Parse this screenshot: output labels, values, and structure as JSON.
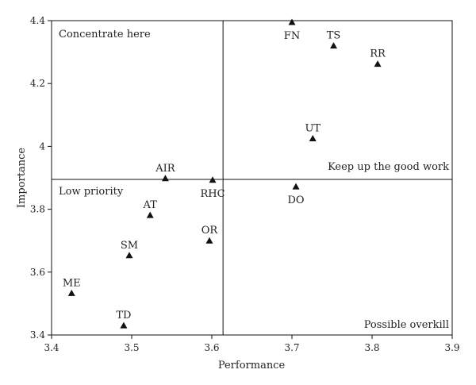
{
  "chart_data": {
    "type": "scatter",
    "title": "",
    "xlabel": "Performance",
    "ylabel": "Importance",
    "xlim": [
      3.4,
      3.9
    ],
    "ylim": [
      3.4,
      4.4
    ],
    "xticks": [
      3.4,
      3.5,
      3.6,
      3.7,
      3.8,
      3.9
    ],
    "yticks": [
      3.4,
      3.6,
      3.8,
      4.0,
      4.2,
      4.4
    ],
    "xtick_labels": [
      "3.4",
      "3.5",
      "3.6",
      "3.7",
      "3.8",
      "3.9"
    ],
    "ytick_labels": [
      "3.4",
      "3.6",
      "3.8",
      "4",
      "4.2",
      "4.4"
    ],
    "grid": false,
    "marker": "triangle",
    "marker_color": "#111111",
    "divider_x": 3.614,
    "divider_y": 3.895,
    "quadrants": {
      "top_left": "Concentrate here",
      "top_right": "Keep up the good work",
      "bottom_left": "Low priority",
      "bottom_right": "Possible overkill"
    },
    "points": [
      {
        "label": "FN",
        "x": 3.7,
        "y": 4.395,
        "label_pos": "below"
      },
      {
        "label": "TS",
        "x": 3.752,
        "y": 4.32,
        "label_pos": "above"
      },
      {
        "label": "RR",
        "x": 3.807,
        "y": 4.262,
        "label_pos": "above"
      },
      {
        "label": "UT",
        "x": 3.726,
        "y": 4.025,
        "label_pos": "above"
      },
      {
        "label": "DO",
        "x": 3.705,
        "y": 3.872,
        "label_pos": "below"
      },
      {
        "label": "AIR",
        "x": 3.542,
        "y": 3.898,
        "label_pos": "above"
      },
      {
        "label": "RHC",
        "x": 3.601,
        "y": 3.893,
        "label_pos": "below"
      },
      {
        "label": "AT",
        "x": 3.523,
        "y": 3.781,
        "label_pos": "above"
      },
      {
        "label": "OR",
        "x": 3.597,
        "y": 3.7,
        "label_pos": "above"
      },
      {
        "label": "SM",
        "x": 3.497,
        "y": 3.653,
        "label_pos": "above"
      },
      {
        "label": "ME",
        "x": 3.425,
        "y": 3.533,
        "label_pos": "above"
      },
      {
        "label": "TD",
        "x": 3.49,
        "y": 3.43,
        "label_pos": "above"
      }
    ]
  }
}
